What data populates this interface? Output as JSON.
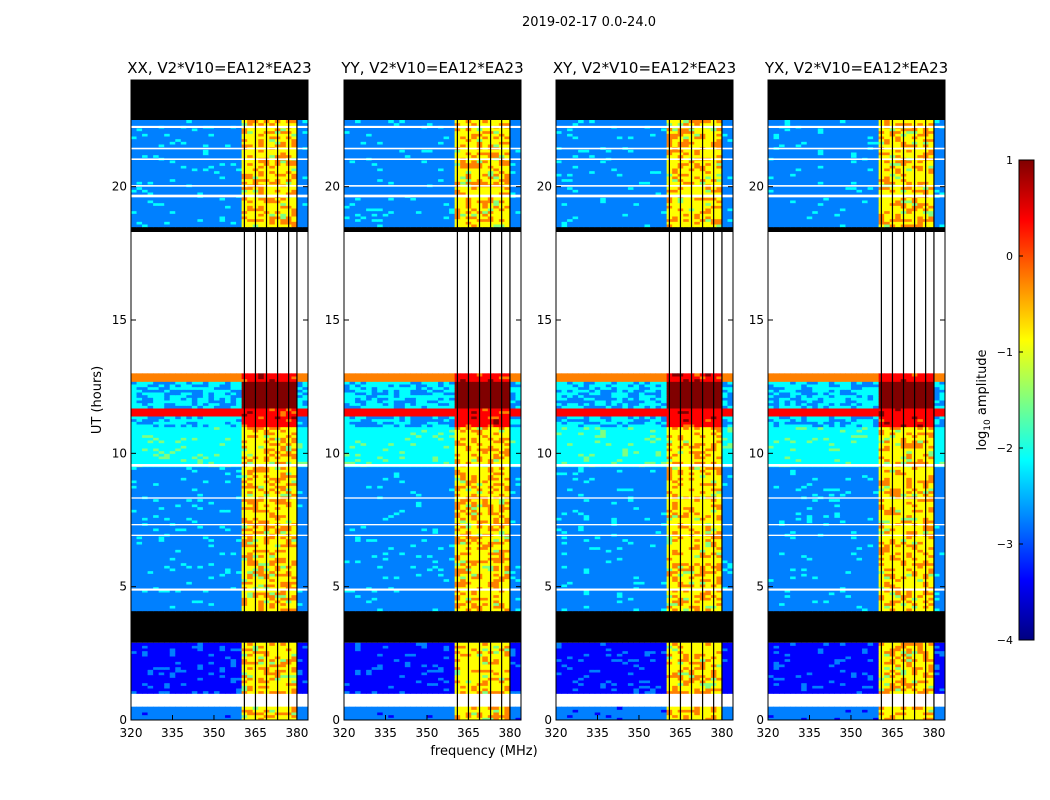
{
  "chart_data": {
    "type": "heatmap",
    "suptitle": "2019-02-17 0.0-24.0",
    "xlabel": "frequency (MHz)",
    "ylabel": "UT (hours)",
    "xlim": [
      320,
      384
    ],
    "ylim": [
      0,
      24
    ],
    "xticks": [
      320,
      335,
      350,
      365,
      380
    ],
    "yticks": [
      0,
      5,
      10,
      15,
      20
    ],
    "panels": [
      {
        "title": "XX, V2*V10=EA12*EA23",
        "polarization": "XX"
      },
      {
        "title": "YY, V2*V10=EA12*EA23",
        "polarization": "YY"
      },
      {
        "title": "XY, V2*V10=EA12*EA23",
        "polarization": "XY"
      },
      {
        "title": "YX, V2*V10=EA12*EA23",
        "polarization": "YX"
      }
    ],
    "colorbar": {
      "label_prefix": "log",
      "label_sub": "10",
      "label_suffix": " amplitude",
      "range": [
        -4,
        1
      ],
      "ticks": [
        1,
        0,
        -1,
        -2,
        -3,
        -4
      ],
      "tick_labels": [
        "1",
        "0",
        "−1",
        "−2",
        "−3",
        "−4"
      ],
      "colormap": "jet",
      "colors": [
        "#000080",
        "#0000ff",
        "#0080ff",
        "#00ffff",
        "#80ff80",
        "#ffff00",
        "#ff8000",
        "#ff0000",
        "#800000"
      ]
    },
    "flagged_time_ranges": [
      [
        22.8,
        24.0
      ],
      [
        18.3,
        18.5
      ],
      [
        13.0,
        18.3
      ],
      [
        1.0,
        0.6
      ]
    ],
    "gap_time_ranges": [
      [
        0.5,
        1.0
      ],
      [
        13.0,
        18.3
      ]
    ],
    "rfi_band_mhz": [
      361,
      380
    ],
    "rfi_channel_edges_mhz": [
      361,
      365,
      369,
      373,
      377,
      380
    ],
    "tick_label_strings": {
      "x": [
        "320",
        "335",
        "350",
        "365",
        "380"
      ],
      "y": [
        "0",
        "5",
        "10",
        "15",
        "20"
      ]
    }
  }
}
